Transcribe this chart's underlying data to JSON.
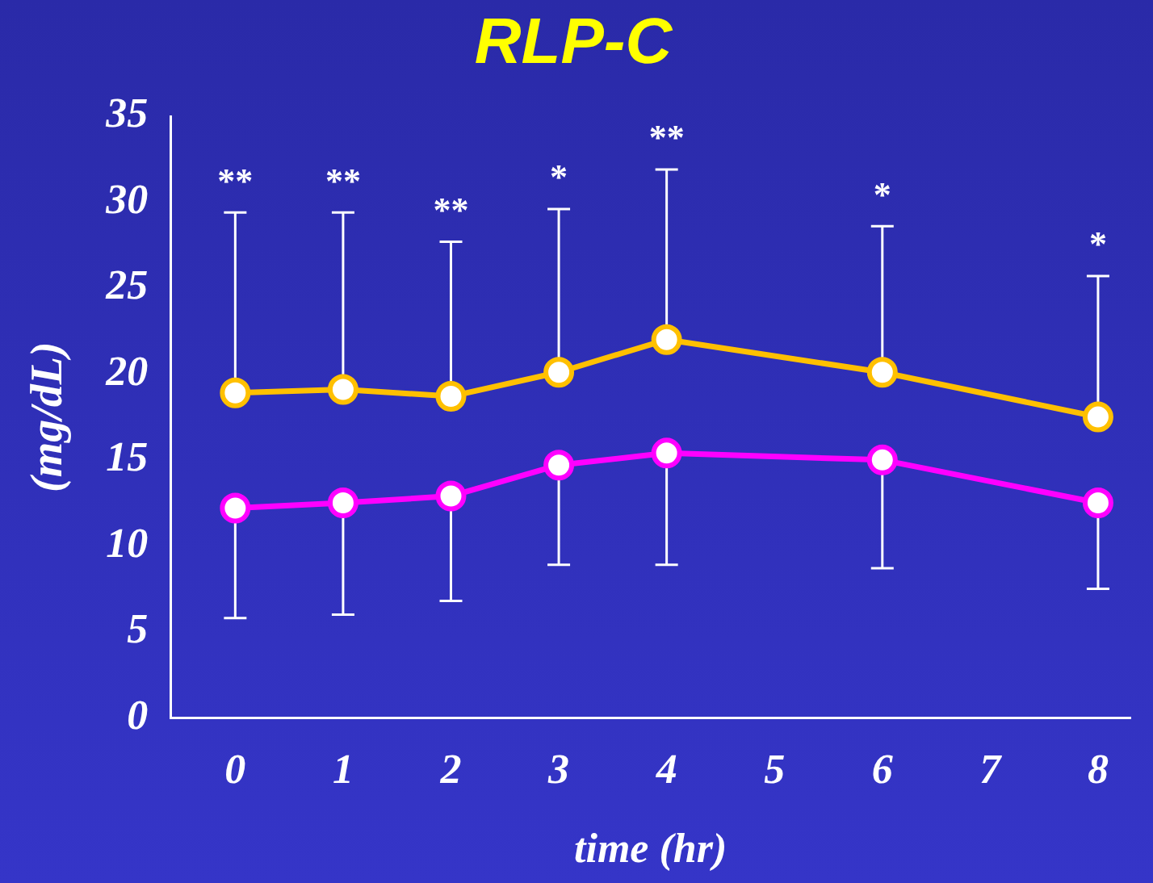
{
  "chart_data": {
    "type": "line",
    "title": "RLP-C",
    "xlabel": "time (hr)",
    "ylabel": "(mg/dL)",
    "x": [
      0,
      1,
      2,
      3,
      4,
      6,
      8
    ],
    "series": [
      {
        "color": "#ffc000",
        "values": [
          18.9,
          19.1,
          18.7,
          20.1,
          22.0,
          20.1,
          17.5
        ],
        "errors": [
          [
            18.9,
            29.4
          ],
          [
            19.1,
            29.4
          ],
          [
            18.7,
            27.7
          ],
          [
            20.1,
            29.6
          ],
          [
            22.0,
            31.9
          ],
          [
            20.1,
            28.6
          ],
          [
            17.5,
            25.7
          ]
        ]
      },
      {
        "color": "#ff00ff",
        "values": [
          12.2,
          12.5,
          12.9,
          14.7,
          15.4,
          15.0,
          12.5
        ],
        "errors": [
          [
            5.8,
            12.2
          ],
          [
            6.0,
            12.5
          ],
          [
            6.8,
            12.9
          ],
          [
            8.9,
            14.7
          ],
          [
            8.9,
            15.4
          ],
          [
            8.7,
            15.0
          ],
          [
            7.5,
            12.5
          ]
        ]
      }
    ],
    "xlim": [
      -0.6,
      8.3
    ],
    "xticks": [
      0,
      1,
      2,
      3,
      4,
      5,
      6,
      7,
      8
    ],
    "ylim": [
      0,
      35
    ],
    "yticks": [
      0,
      5,
      10,
      15,
      20,
      25,
      30,
      35
    ],
    "grid": false,
    "legend": false,
    "marker": "circle",
    "line_style": "solid",
    "annotations": [
      {
        "text": "**",
        "x": 0,
        "y": 29.4
      },
      {
        "text": "**",
        "x": 1,
        "y": 29.4
      },
      {
        "text": "**",
        "x": 2,
        "y": 27.7
      },
      {
        "text": "*",
        "x": 3,
        "y": 29.6
      },
      {
        "text": "**",
        "x": 4,
        "y": 31.9
      },
      {
        "text": "*",
        "x": 6,
        "y": 28.6
      },
      {
        "text": "*",
        "x": 8,
        "y": 25.7
      }
    ]
  }
}
